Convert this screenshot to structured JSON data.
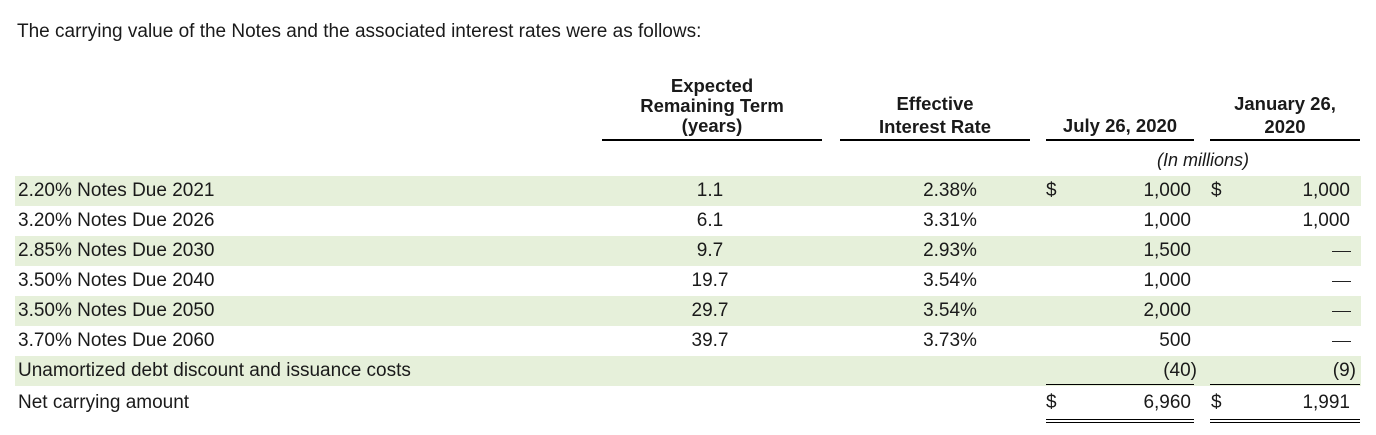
{
  "intro": "The carrying value of the Notes and the associated interest rates were as follows:",
  "headers": {
    "term": [
      "Expected",
      "Remaining Term",
      "(years)"
    ],
    "rate": [
      "Effective",
      "Interest Rate"
    ],
    "col1": "July 26, 2020",
    "col2": [
      "January 26,",
      "2020"
    ]
  },
  "units": "(In millions)",
  "rows": [
    {
      "label": "2.20% Notes Due 2021",
      "term": "1.1",
      "rate": "2.38%",
      "d1": "$",
      "v1": "1,000",
      "d2": "$",
      "v2": "1,000"
    },
    {
      "label": "3.20% Notes Due 2026",
      "term": "6.1",
      "rate": "3.31%",
      "v1": "1,000",
      "v2": "1,000"
    },
    {
      "label": "2.85% Notes Due 2030",
      "term": "9.7",
      "rate": "2.93%",
      "v1": "1,500",
      "v2": "—"
    },
    {
      "label": "3.50% Notes Due 2040",
      "term": "19.7",
      "rate": "3.54%",
      "v1": "1,000",
      "v2": "—"
    },
    {
      "label": "3.50% Notes Due 2050",
      "term": "29.7",
      "rate": "3.54%",
      "v1": "2,000",
      "v2": "—"
    },
    {
      "label": "3.70% Notes Due 2060",
      "term": "39.7",
      "rate": "3.73%",
      "v1": "500",
      "v2": "—"
    },
    {
      "label": "Unamortized debt discount and issuance costs",
      "v1": "(40)",
      "v2": "(9)"
    },
    {
      "label": "Net carrying amount",
      "d1": "$",
      "v1": "6,960",
      "d2": "$",
      "v2": "1,991"
    }
  ]
}
